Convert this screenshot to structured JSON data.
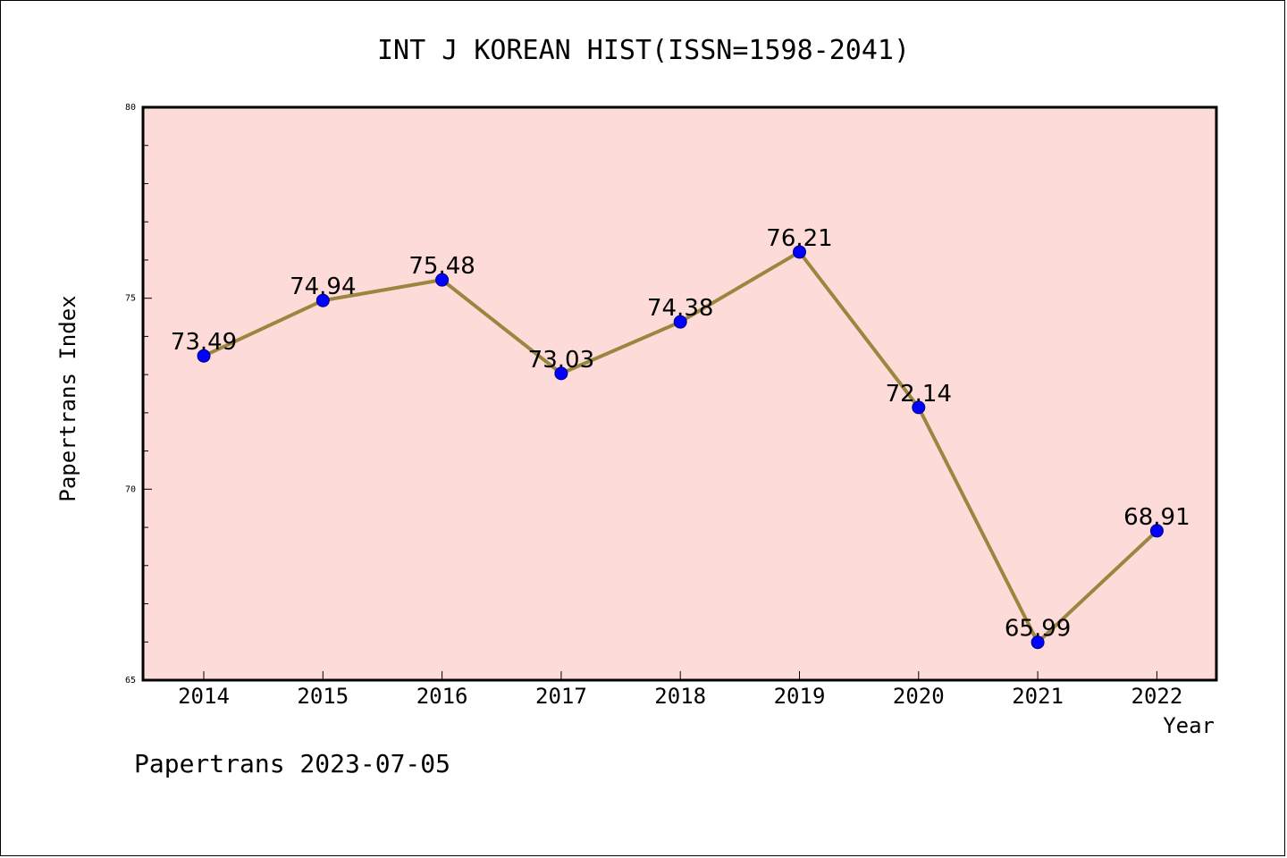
{
  "chart_data": {
    "type": "line",
    "title": "INT J KOREAN HIST(ISSN=1598-2041)",
    "xlabel": "Year",
    "ylabel": "Papertrans Index",
    "categories": [
      "2014",
      "2015",
      "2016",
      "2017",
      "2018",
      "2019",
      "2020",
      "2021",
      "2022"
    ],
    "series": [
      {
        "values": [
          73.49,
          74.94,
          75.48,
          73.03,
          74.38,
          76.21,
          72.14,
          65.99,
          68.91
        ],
        "data_labels": [
          "73.49",
          "74.94",
          "75.48",
          "73.03",
          "74.38",
          "76.21",
          "72.14",
          "65.99",
          "68.91"
        ]
      }
    ],
    "ylim": [
      65,
      80
    ],
    "yticks": [
      "65",
      "70",
      "75",
      "80"
    ],
    "grid": false,
    "colors": {
      "plot_background": "#fddbd8",
      "line": "#9b8640",
      "marker": "#0000ff"
    },
    "footer": "Papertrans 2023-07-05"
  }
}
